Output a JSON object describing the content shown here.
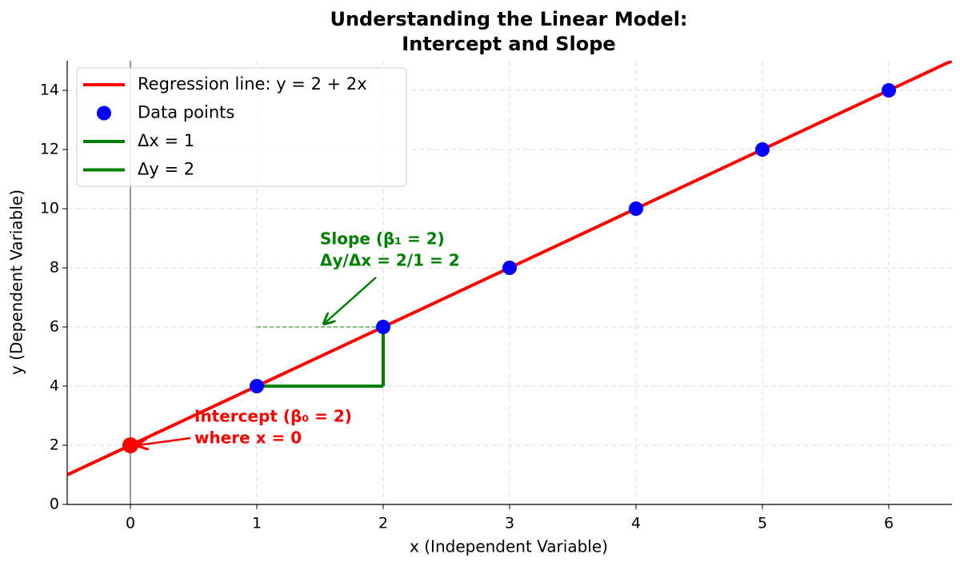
{
  "chart_data": {
    "type": "line",
    "title_lines": [
      "Understanding the Linear Model:",
      "Intercept and Slope"
    ],
    "x_label": "x (Independent Variable)",
    "y_label": "y (Dependent Variable)",
    "xlim": [
      -0.5,
      6.5
    ],
    "ylim": [
      0,
      15
    ],
    "xticks": [
      0,
      1,
      2,
      3,
      4,
      5,
      6
    ],
    "yticks": [
      0,
      2,
      4,
      6,
      8,
      10,
      12,
      14
    ],
    "grid": true,
    "legend": "upper left",
    "series": [
      {
        "name": "Regression line: y = 2 + 2x",
        "color": "#ff0000",
        "style": "line",
        "x": [
          -0.5,
          6.5
        ],
        "values": [
          1,
          15
        ]
      },
      {
        "name": "Data points",
        "color": "#0000ff",
        "style": "scatter",
        "x": [
          1,
          2,
          3,
          4,
          5,
          6
        ],
        "values": [
          4,
          6,
          8,
          10,
          12,
          14
        ]
      },
      {
        "name": "Δx = 1",
        "color": "#008000",
        "style": "line",
        "x": [
          1,
          2
        ],
        "values": [
          4,
          4
        ]
      },
      {
        "name": "Δy = 2",
        "color": "#008000",
        "style": "line",
        "x": [
          2,
          2
        ],
        "values": [
          4,
          6
        ]
      }
    ],
    "intercept_point": {
      "x": 0,
      "y": 2,
      "color": "#ff0000"
    },
    "guide_line": {
      "x": [
        1,
        2
      ],
      "values": [
        6,
        6
      ],
      "color": "#008000"
    },
    "vline_x": 0,
    "annotations": [
      {
        "lines": [
          "Intercept (β₀ = 2)",
          "where x = 0"
        ],
        "color": "#ff0000"
      },
      {
        "lines": [
          "Slope (β₁ = 2)",
          "Δy/Δx = 2/1 = 2"
        ],
        "color": "#008000"
      }
    ]
  }
}
